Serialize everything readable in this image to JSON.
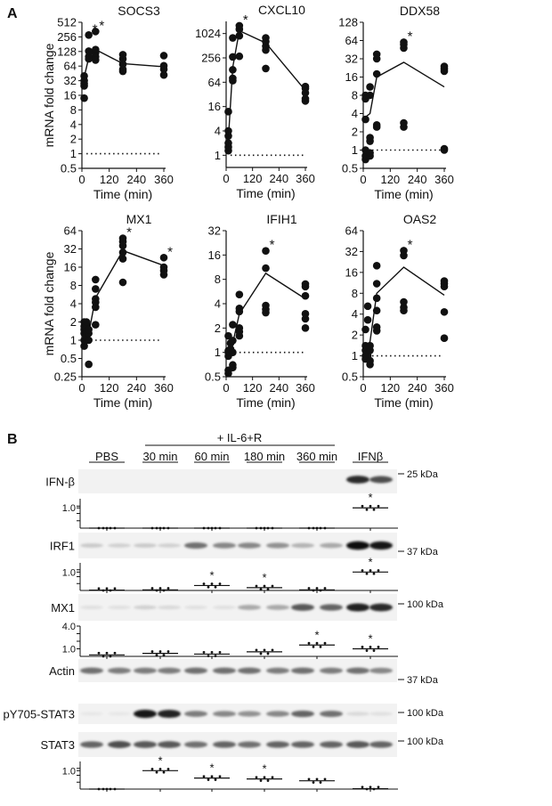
{
  "panel_labels": {
    "a": "A",
    "b": "B"
  },
  "panel_a": {
    "ylabel": "mRNA fold change",
    "xlabel": "Time (min)",
    "xticks": [
      0,
      120,
      240,
      360
    ]
  },
  "chart_data": [
    {
      "type": "scatter",
      "title": "SOCS3",
      "yscale": "log2",
      "ylim": [
        0.5,
        512
      ],
      "yticks": [
        0.5,
        1,
        2,
        4,
        8,
        16,
        32,
        64,
        128,
        256,
        512
      ],
      "xlim": [
        0,
        360
      ],
      "xlabel": "Time (min)",
      "ylabel": "mRNA fold change",
      "groups": [
        {
          "time": 10,
          "values": [
            14,
            25,
            28,
            32,
            40
          ]
        },
        {
          "time": 30,
          "values": [
            90,
            100,
            130,
            280
          ]
        },
        {
          "time": 60,
          "values": [
            85,
            100,
            120,
            140,
            330
          ]
        },
        {
          "time": 180,
          "values": [
            50,
            55,
            70,
            90,
            110
          ]
        },
        {
          "time": 360,
          "values": [
            42,
            55,
            65,
            105
          ]
        }
      ],
      "mean_line": {
        "time": [
          10,
          30,
          60,
          180,
          360
        ],
        "value": [
          38,
          95,
          140,
          72,
          62
        ]
      },
      "significant_times": [
        30,
        60
      ],
      "baseline": 1
    },
    {
      "type": "scatter",
      "title": "CXCL10",
      "yscale": "log2",
      "ylim": [
        0.5,
        2048
      ],
      "yticks": [
        1,
        4,
        16,
        64,
        256,
        1024
      ],
      "xlim": [
        0,
        360
      ],
      "xlabel": "Time (min)",
      "groups": [
        {
          "time": 10,
          "values": [
            1.3,
            1.6,
            2,
            3,
            4,
            12
          ]
        },
        {
          "time": 30,
          "values": [
            70,
            80,
            130,
            270,
            800
          ]
        },
        {
          "time": 60,
          "values": [
            280,
            900,
            1300,
            1600
          ]
        },
        {
          "time": 180,
          "values": [
            140,
            400,
            500,
            650,
            800
          ]
        },
        {
          "time": 360,
          "values": [
            22,
            25,
            35,
            45,
            50
          ]
        }
      ],
      "mean_line": {
        "time": [
          10,
          30,
          60,
          180,
          360
        ],
        "value": [
          2.5,
          150,
          1200,
          600,
          40
        ]
      },
      "significant_times": [
        60
      ],
      "baseline": 1
    },
    {
      "type": "scatter",
      "title": "DDX58",
      "yscale": "log2",
      "ylim": [
        0.5,
        128
      ],
      "yticks": [
        0.5,
        1,
        2,
        4,
        8,
        16,
        32,
        64,
        128
      ],
      "xlim": [
        0,
        360
      ],
      "xlabel": "Time (min)",
      "groups": [
        {
          "time": 10,
          "values": [
            0.7,
            0.8,
            1,
            3.2,
            7,
            8
          ]
        },
        {
          "time": 30,
          "values": [
            0.8,
            0.9,
            1.4,
            1.6,
            8,
            11
          ]
        },
        {
          "time": 60,
          "values": [
            2.4,
            2.6,
            18,
            32,
            38
          ]
        },
        {
          "time": 180,
          "values": [
            2.4,
            2.8,
            48,
            55,
            60
          ]
        },
        {
          "time": 360,
          "values": [
            1,
            1.05,
            20,
            22,
            24
          ]
        }
      ],
      "mean_line": {
        "time": [
          10,
          30,
          60,
          180,
          360
        ],
        "value": [
          3.5,
          4,
          16,
          28,
          11
        ]
      },
      "significant_times": [
        180
      ],
      "baseline": 1
    },
    {
      "type": "scatter",
      "title": "MX1",
      "yscale": "log2",
      "ylim": [
        0.25,
        64
      ],
      "yticks": [
        0.25,
        0.5,
        1,
        2,
        4,
        8,
        16,
        32,
        64
      ],
      "xlim": [
        0,
        360
      ],
      "xlabel": "Time (min)",
      "ylabel": "mRNA fold change",
      "groups": [
        {
          "time": 10,
          "values": [
            0.8,
            1,
            1.3,
            1.5,
            1.7,
            2
          ]
        },
        {
          "time": 20,
          "values": [
            1,
            1.2,
            1.4,
            1.6,
            1.8,
            2
          ]
        },
        {
          "time": 30,
          "values": [
            0.4,
            1,
            1.3,
            1.5
          ]
        },
        {
          "time": 60,
          "values": [
            1.8,
            3.5,
            4.2,
            4.8,
            7,
            10
          ]
        },
        {
          "time": 180,
          "values": [
            9,
            22,
            28,
            36,
            42,
            48
          ]
        },
        {
          "time": 360,
          "values": [
            12,
            14,
            16,
            23
          ]
        }
      ],
      "mean_line": {
        "time": [
          10,
          30,
          60,
          180,
          360
        ],
        "value": [
          1.4,
          1.3,
          5,
          30,
          17
        ]
      },
      "significant_times": [
        180,
        360
      ],
      "baseline": 1
    },
    {
      "type": "scatter",
      "title": "IFIH1",
      "yscale": "log2",
      "ylim": [
        0.5,
        32
      ],
      "yticks": [
        0.5,
        1,
        2,
        4,
        8,
        16,
        32
      ],
      "xlim": [
        0,
        360
      ],
      "xlabel": "Time (min)",
      "groups": [
        {
          "time": 10,
          "values": [
            0.55,
            0.6,
            0.9,
            1,
            1.05,
            1.6
          ]
        },
        {
          "time": 20,
          "values": [
            1,
            1.1,
            1.3
          ]
        },
        {
          "time": 30,
          "values": [
            0.65,
            0.7,
            1,
            1.4,
            2.2
          ]
        },
        {
          "time": 60,
          "values": [
            1.6,
            1.8,
            2,
            3.2,
            3.5,
            5.2
          ]
        },
        {
          "time": 180,
          "values": [
            3.1,
            3.4,
            3.8,
            11,
            18
          ]
        },
        {
          "time": 360,
          "values": [
            2,
            2.6,
            3,
            5,
            6.5,
            7
          ]
        }
      ],
      "mean_line": {
        "time": [
          10,
          30,
          60,
          180,
          360
        ],
        "value": [
          1,
          1.3,
          3,
          9.5,
          4.6
        ]
      },
      "significant_times": [
        180
      ],
      "baseline": 1
    },
    {
      "type": "scatter",
      "title": "OAS2",
      "yscale": "log2",
      "ylim": [
        0.5,
        64
      ],
      "yticks": [
        0.5,
        1,
        2,
        4,
        8,
        16,
        32,
        64
      ],
      "xlim": [
        0,
        360
      ],
      "xlabel": "Time (min)",
      "groups": [
        {
          "time": 10,
          "values": [
            0.9,
            1,
            1.2,
            1.4,
            2.4
          ]
        },
        {
          "time": 20,
          "values": [
            1,
            1.3,
            3.3,
            5.2
          ]
        },
        {
          "time": 30,
          "values": [
            0.75,
            0.85,
            1.2,
            1.4
          ]
        },
        {
          "time": 60,
          "values": [
            2.3,
            2.6,
            4.5,
            6.8,
            11,
            20
          ]
        },
        {
          "time": 180,
          "values": [
            4.5,
            5,
            6,
            28,
            33
          ]
        },
        {
          "time": 360,
          "values": [
            1.8,
            4.3,
            10,
            11,
            12
          ]
        }
      ],
      "mean_line": {
        "time": [
          10,
          30,
          60,
          180,
          360
        ],
        "value": [
          1.3,
          1.6,
          8,
          19,
          7.5
        ]
      },
      "significant_times": [
        180
      ],
      "baseline": 1
    }
  ],
  "panel_b": {
    "treatment_header": "+ IL-6+R",
    "groups": [
      "PBS",
      "30 min",
      "60 min",
      "180 min",
      "360 min",
      "IFNβ"
    ],
    "blots": [
      {
        "label": "IFN-β",
        "marker": "25 kDa",
        "bands": [
          0,
          0,
          0,
          0,
          0,
          0,
          0,
          0,
          0,
          0,
          0.85,
          0.7
        ]
      },
      {
        "label": "IRF1",
        "marker": "37 kDa",
        "bands": [
          0.15,
          0.12,
          0.15,
          0.12,
          0.55,
          0.45,
          0.45,
          0.4,
          0.25,
          0.3,
          1,
          0.95
        ]
      },
      {
        "label": "MX1",
        "marker": "100 kDa",
        "bands": [
          0.05,
          0.05,
          0.12,
          0.08,
          0.05,
          0.05,
          0.3,
          0.3,
          0.65,
          0.6,
          0.9,
          0.85
        ]
      },
      {
        "label": "Actin",
        "marker": "37 kDa",
        "bands": [
          0.55,
          0.5,
          0.5,
          0.5,
          0.55,
          0.55,
          0.55,
          0.5,
          0.55,
          0.5,
          0.55,
          0.45
        ]
      },
      {
        "label": "pY705-STAT3",
        "marker": "100 kDa",
        "bands": [
          0.02,
          0.02,
          0.95,
          0.9,
          0.5,
          0.45,
          0.4,
          0.45,
          0.6,
          0.55,
          0.08,
          0.05
        ]
      },
      {
        "label": "STAT3",
        "marker": "100 kDa",
        "bands": [
          0.6,
          0.7,
          0.65,
          0.65,
          0.55,
          0.6,
          0.55,
          0.6,
          0.6,
          0.6,
          0.65,
          0.6
        ]
      }
    ],
    "quantification": [
      {
        "type": "scatter",
        "of": "IFN-β",
        "ylim": [
          0,
          1.45
        ],
        "yticks": [
          1.0
        ],
        "ytick_labels": [
          "1.0"
        ],
        "means": [
          0,
          0,
          0,
          0,
          0,
          1.0
        ],
        "significant": [
          "IFNβ"
        ]
      },
      {
        "type": "scatter",
        "of": "IRF1",
        "ylim": [
          0,
          1.5
        ],
        "yticks": [
          1.0
        ],
        "ytick_labels": [
          "1.0"
        ],
        "means": [
          0.02,
          0.03,
          0.27,
          0.15,
          0.03,
          1.0
        ],
        "significant": [
          "60 min",
          "180 min",
          "IFNβ"
        ]
      },
      {
        "type": "scatter",
        "of": "MX1",
        "ylim": [
          0,
          4.0
        ],
        "yticks": [
          1.0,
          4.0
        ],
        "ytick_labels": [
          "1.0",
          "4.0"
        ],
        "means": [
          0.2,
          0.4,
          0.3,
          0.6,
          1.5,
          1.0
        ],
        "significant": [
          "360 min",
          "IFNβ"
        ]
      },
      {
        "type": "scatter",
        "of": "pY705-STAT3",
        "ylim": [
          0,
          1.5
        ],
        "yticks": [
          1.0
        ],
        "ytick_labels": [
          "1.0"
        ],
        "means": [
          0,
          1.0,
          0.6,
          0.55,
          0.45,
          0.02
        ],
        "significant": [
          "30 min",
          "60 min",
          "180 min"
        ]
      }
    ],
    "significance_mark": "*"
  }
}
